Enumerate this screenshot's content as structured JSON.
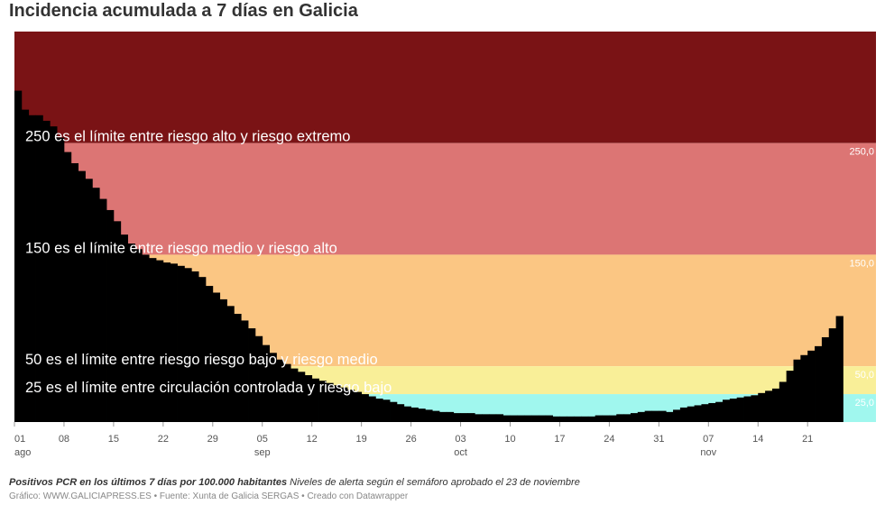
{
  "header": {
    "title": "Incidencia acumulada a 7 días en Galicia"
  },
  "notes": {
    "metric": "Positivos PCR en los últimos 7 días por 100.000 habitantes",
    "alert_levels": "Niveles de alerta según el semáforo aprobado el 23 de noviembre"
  },
  "footer": {
    "credits": "Gráfico: WWW.GALICIAPRESS.ES • Fuente: Xunta de Galicia SERGAS • Creado con Datawrapper"
  },
  "colors": {
    "extreme": "#7a1315",
    "high": "#dc7574",
    "medium": "#fbc683",
    "low": "#f9ef98",
    "controlled": "#a0f7ee",
    "area": "#000000"
  },
  "chart_data": {
    "type": "area",
    "start_date": "01 ago",
    "x_ticks": [
      {
        "day": 0,
        "label": "01",
        "month": "ago"
      },
      {
        "day": 7,
        "label": "08",
        "month": ""
      },
      {
        "day": 14,
        "label": "15",
        "month": ""
      },
      {
        "day": 21,
        "label": "22",
        "month": ""
      },
      {
        "day": 28,
        "label": "29",
        "month": ""
      },
      {
        "day": 35,
        "label": "05",
        "month": "sep"
      },
      {
        "day": 42,
        "label": "12",
        "month": ""
      },
      {
        "day": 49,
        "label": "19",
        "month": ""
      },
      {
        "day": 56,
        "label": "26",
        "month": ""
      },
      {
        "day": 63,
        "label": "03",
        "month": "oct"
      },
      {
        "day": 70,
        "label": "10",
        "month": ""
      },
      {
        "day": 77,
        "label": "17",
        "month": ""
      },
      {
        "day": 84,
        "label": "24",
        "month": ""
      },
      {
        "day": 91,
        "label": "31",
        "month": ""
      },
      {
        "day": 98,
        "label": "07",
        "month": "nov"
      },
      {
        "day": 105,
        "label": "14",
        "month": ""
      },
      {
        "day": 112,
        "label": "21",
        "month": ""
      }
    ],
    "ylim": [
      0,
      350
    ],
    "bands": [
      {
        "from": 250,
        "to": 350,
        "color_key": "extreme",
        "value_label": "",
        "label": ""
      },
      {
        "from": 150,
        "to": 250,
        "color_key": "high",
        "value_label": "250,0",
        "label": "250 es el límite entre riesgo alto y riesgo extremo"
      },
      {
        "from": 50,
        "to": 150,
        "color_key": "medium",
        "value_label": "150,0",
        "label": "150 es el límite entre riesgo medio y riesgo alto"
      },
      {
        "from": 25,
        "to": 50,
        "color_key": "low",
        "value_label": "50,0",
        "label": "50 es el límite entre riesgo riesgo bajo y riesgo medio"
      },
      {
        "from": 0,
        "to": 25,
        "color_key": "controlled",
        "value_label": "25,0",
        "label": "25 es el límite entre circulación controlada y riesgo bajo"
      }
    ],
    "values": [
      297,
      280,
      275,
      275,
      270,
      265,
      255,
      242,
      232,
      225,
      218,
      210,
      200,
      190,
      180,
      168,
      160,
      155,
      150,
      147,
      145,
      143,
      142,
      140,
      138,
      135,
      130,
      122,
      116,
      110,
      104,
      97,
      91,
      84,
      77,
      69,
      62,
      56,
      52,
      48,
      45,
      42,
      39,
      37,
      35,
      33,
      31,
      29,
      27,
      25,
      23,
      21,
      20,
      18,
      16,
      14,
      13,
      12,
      11,
      10,
      9,
      9,
      8,
      8,
      8,
      7,
      7,
      7,
      7,
      6,
      6,
      6,
      6,
      6,
      6,
      6,
      5,
      5,
      5,
      5,
      5,
      5,
      6,
      6,
      6,
      7,
      7,
      8,
      9,
      10,
      10,
      10,
      9,
      11,
      13,
      14,
      15,
      16,
      17,
      18,
      20,
      21,
      22,
      23,
      24,
      26,
      28,
      30,
      36,
      46,
      56,
      60,
      64,
      68,
      76,
      84,
      95
    ]
  }
}
